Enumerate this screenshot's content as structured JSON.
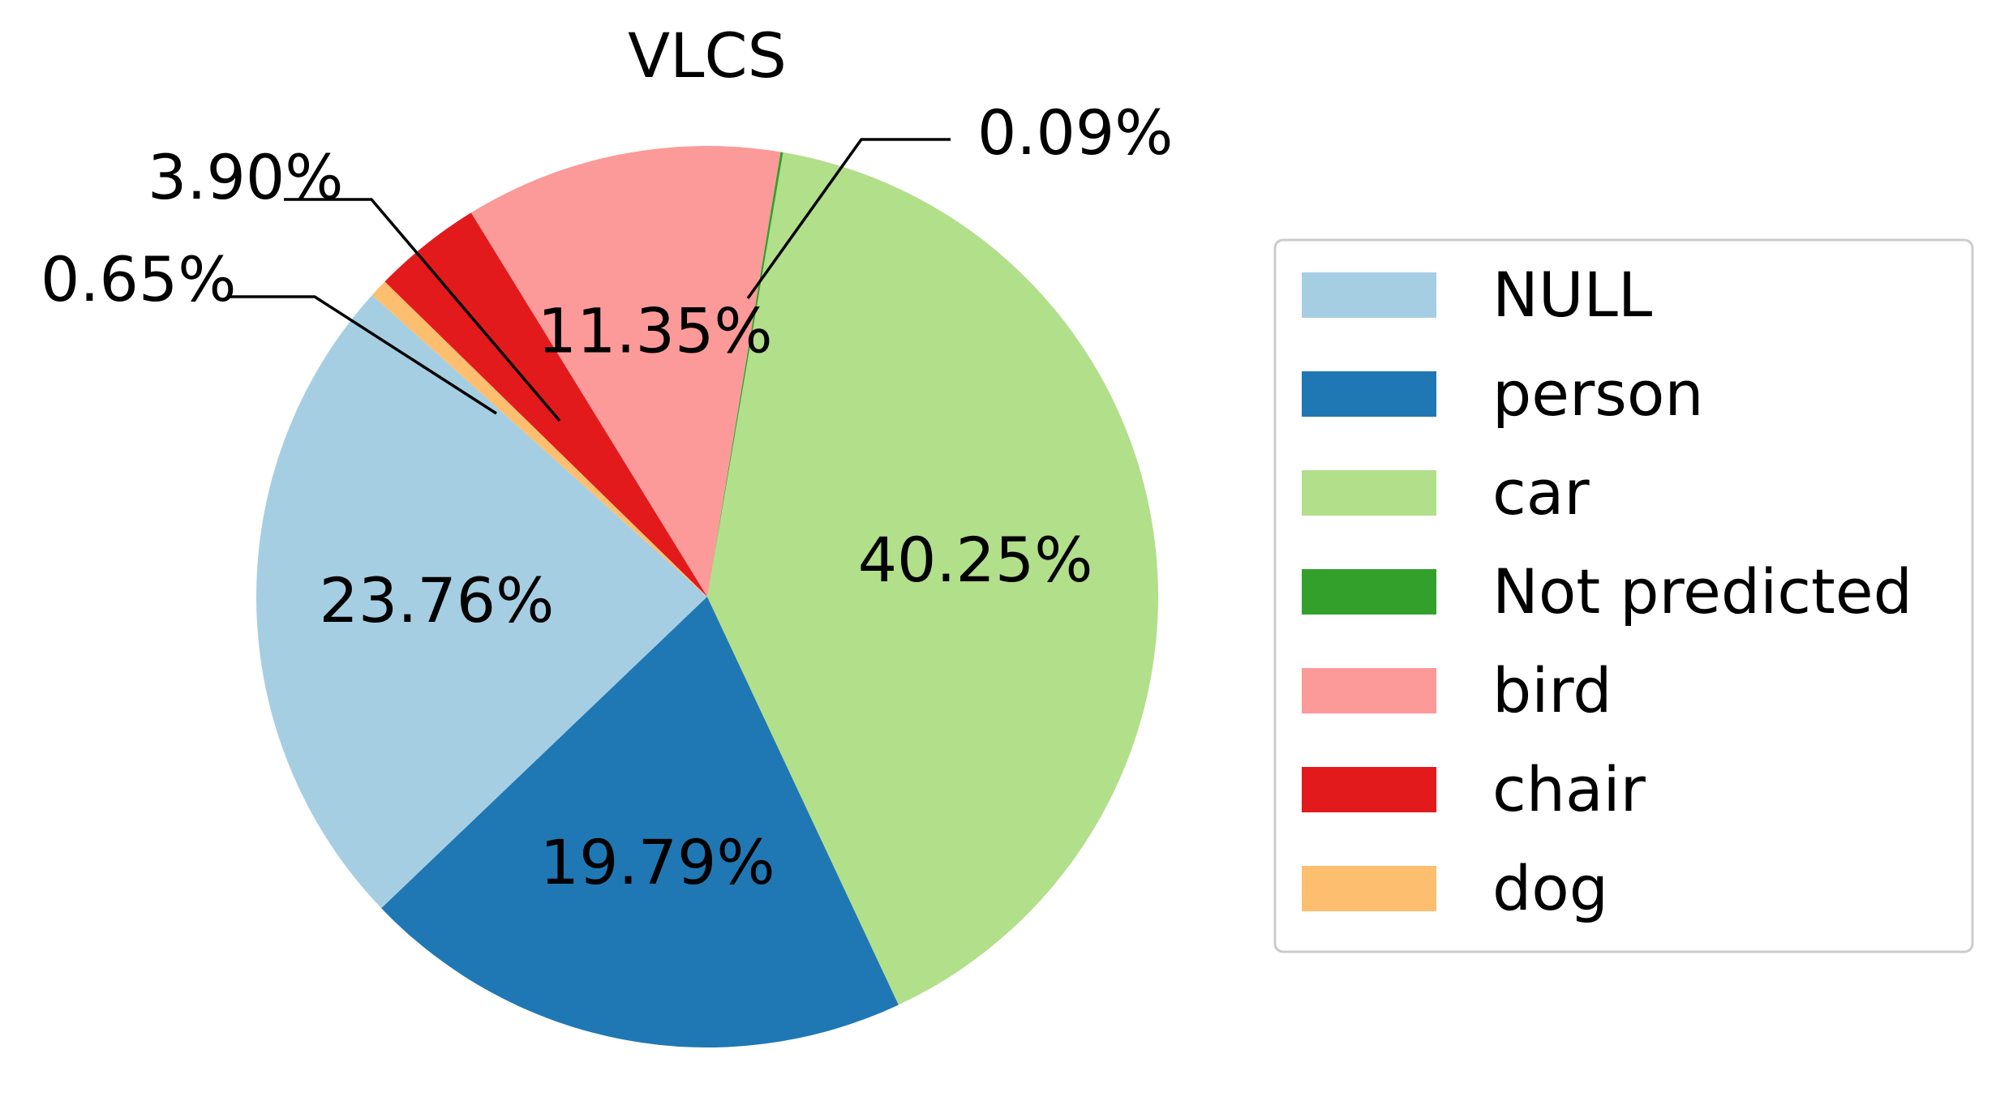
{
  "chart_data": {
    "type": "pie",
    "title": "VLCS",
    "start_angle_deg": 138,
    "direction": "counterclockwise",
    "legend_placement": "right",
    "slices": [
      {
        "name": "NULL",
        "value": 23.76,
        "label": "23.76%",
        "color": "#a6cee3"
      },
      {
        "name": "person",
        "value": 19.79,
        "label": "19.79%",
        "color": "#1f78b4"
      },
      {
        "name": "car",
        "value": 40.25,
        "label": "40.25%",
        "color": "#b2df8a"
      },
      {
        "name": "Not predicted",
        "value": 0.09,
        "label": "0.09%",
        "color": "#33a02c"
      },
      {
        "name": "bird",
        "value": 11.35,
        "label": "11.35%",
        "color": "#fb9a99"
      },
      {
        "name": "chair",
        "value": 3.9,
        "label": "3.90%",
        "color": "#e31a1c"
      },
      {
        "name": "dog",
        "value": 0.65,
        "label": "0.65%",
        "color": "#fdbf6f"
      }
    ]
  }
}
